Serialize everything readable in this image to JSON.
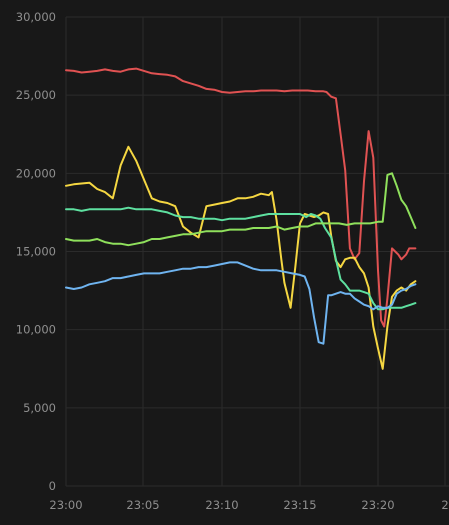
{
  "chart_data": {
    "type": "line",
    "title": "",
    "xlabel": "",
    "ylabel": "",
    "grid": true,
    "legend": "none",
    "xlim": [
      "23:00",
      "23:22.5"
    ],
    "ylim": [
      0,
      30000
    ],
    "x_ticks": [
      "23:00",
      "23:05",
      "23:10",
      "23:15",
      "23:20",
      "2"
    ],
    "y_ticks": [
      "0",
      "5,000",
      "10,000",
      "15,000",
      "20,000",
      "25,000",
      "30,000"
    ],
    "series": [
      {
        "color": "#e05252",
        "x": [
          "23:00",
          "23:00.5",
          "23:01",
          "23:01.5",
          "23:02",
          "23:02.5",
          "23:03",
          "23:03.5",
          "23:04",
          "23:04.5",
          "23:05",
          "23:05.5",
          "23:06",
          "23:06.5",
          "23:07",
          "23:07.5",
          "23:08",
          "23:08.5",
          "23:09",
          "23:09.5",
          "23:10",
          "23:10.5",
          "23:11",
          "23:11.5",
          "23:12",
          "23:12.5",
          "23:13",
          "23:13.5",
          "23:14",
          "23:14.5",
          "23:15",
          "23:15.5",
          "23:16",
          "23:16.5",
          "23:16.7",
          "23:17",
          "23:17.3",
          "23:17.6",
          "23:17.9",
          "23:18.2",
          "23:18.5",
          "23:18.8",
          "23:19.1",
          "23:19.4",
          "23:19.7",
          "23:20",
          "23:20.2",
          "23:20.4",
          "23:20.6",
          "23:20.9",
          "23:21.1",
          "23:21.3",
          "23:21.5",
          "23:21.8",
          "23:22",
          "23:22.2",
          "23:22.4"
        ],
        "values": [
          26600,
          26550,
          26450,
          26500,
          26550,
          26650,
          26550,
          26500,
          26650,
          26700,
          26550,
          26400,
          26350,
          26300,
          26200,
          25900,
          25750,
          25600,
          25400,
          25350,
          25200,
          25150,
          25200,
          25250,
          25250,
          25300,
          25300,
          25300,
          25250,
          25300,
          25300,
          25300,
          25250,
          25250,
          25200,
          24900,
          24800,
          22500,
          20200,
          15200,
          14500,
          14900,
          19500,
          22700,
          21000,
          13800,
          10600,
          10200,
          12000,
          15200,
          15000,
          14800,
          14500,
          14800,
          15200,
          15200,
          15200
        ]
      },
      {
        "color": "#f5d742",
        "x": [
          "23:00",
          "23:00.5",
          "23:01",
          "23:01.5",
          "23:02",
          "23:02.5",
          "23:03",
          "23:03.5",
          "23:04",
          "23:04.5",
          "23:05",
          "23:05.5",
          "23:06",
          "23:06.5",
          "23:07",
          "23:07.5",
          "23:08",
          "23:08.5",
          "23:09",
          "23:09.5",
          "23:10",
          "23:10.5",
          "23:11",
          "23:11.5",
          "23:12",
          "23:12.5",
          "23:13",
          "23:13.2",
          "23:13.5",
          "23:13.8",
          "23:14",
          "23:14.4",
          "23:14.7",
          "23:15",
          "23:15.3",
          "23:15.6",
          "23:15.9",
          "23:16.2",
          "23:16.5",
          "23:16.8",
          "23:17",
          "23:17.3",
          "23:17.6",
          "23:17.9",
          "23:18.2",
          "23:18.5",
          "23:18.8",
          "23:19.1",
          "23:19.4",
          "23:19.7",
          "23:20",
          "23:20.3",
          "23:20.6",
          "23:20.9",
          "23:21.2",
          "23:21.5",
          "23:21.8",
          "23:22.1",
          "23:22.4"
        ],
        "values": [
          19200,
          19300,
          19350,
          19400,
          19000,
          18800,
          18400,
          20500,
          21700,
          20800,
          19600,
          18400,
          18200,
          18100,
          17900,
          16600,
          16200,
          15900,
          17900,
          18000,
          18100,
          18200,
          18400,
          18400,
          18500,
          18700,
          18600,
          18800,
          17000,
          14500,
          13000,
          11400,
          14000,
          16800,
          17400,
          17300,
          17200,
          17300,
          17500,
          17400,
          16000,
          14400,
          14000,
          14500,
          14600,
          14600,
          14000,
          13600,
          12700,
          10200,
          8800,
          7500,
          10200,
          12100,
          12500,
          12700,
          12500,
          12900,
          13100
        ]
      },
      {
        "color": "#5ee0a0",
        "x": [
          "23:00",
          "23:00.5",
          "23:01",
          "23:01.5",
          "23:02",
          "23:02.5",
          "23:03",
          "23:03.5",
          "23:04",
          "23:04.5",
          "23:05",
          "23:05.5",
          "23:06",
          "23:06.5",
          "23:07",
          "23:07.5",
          "23:08",
          "23:08.5",
          "23:09",
          "23:09.5",
          "23:10",
          "23:10.5",
          "23:11",
          "23:11.5",
          "23:12",
          "23:12.5",
          "23:13",
          "23:13.5",
          "23:14",
          "23:14.5",
          "23:15",
          "23:15.2",
          "23:15.4",
          "23:15.7",
          "23:16",
          "23:16.3",
          "23:16.6",
          "23:17",
          "23:17.3",
          "23:17.6",
          "23:17.9",
          "23:18.2",
          "23:18.5",
          "23:18.8",
          "23:19.1",
          "23:19.4",
          "23:19.7",
          "23:20",
          "23:20.3",
          "23:20.6",
          "23:20.9",
          "23:21.2",
          "23:21.5",
          "23:21.8",
          "23:22.1",
          "23:22.4"
        ],
        "values": [
          17700,
          17700,
          17600,
          17700,
          17700,
          17700,
          17700,
          17700,
          17800,
          17700,
          17700,
          17700,
          17600,
          17500,
          17300,
          17200,
          17200,
          17100,
          17100,
          17100,
          17000,
          17100,
          17100,
          17100,
          17200,
          17300,
          17400,
          17400,
          17400,
          17400,
          17400,
          17300,
          17200,
          17400,
          17300,
          17100,
          16500,
          15900,
          14500,
          13200,
          12900,
          12500,
          12500,
          12500,
          12400,
          12300,
          11700,
          11300,
          11300,
          11400,
          11400,
          11400,
          11400,
          11500,
          11600,
          11700
        ]
      },
      {
        "color": "#8fe05c",
        "x": [
          "23:00",
          "23:00.5",
          "23:01",
          "23:01.5",
          "23:02",
          "23:02.5",
          "23:03",
          "23:03.5",
          "23:04",
          "23:04.5",
          "23:05",
          "23:05.5",
          "23:06",
          "23:06.5",
          "23:07",
          "23:07.5",
          "23:08",
          "23:08.5",
          "23:09",
          "23:09.5",
          "23:10",
          "23:10.5",
          "23:11",
          "23:11.5",
          "23:12",
          "23:12.5",
          "23:13",
          "23:13.5",
          "23:14",
          "23:14.5",
          "23:15",
          "23:15.5",
          "23:16",
          "23:16.5",
          "23:17",
          "23:17.5",
          "23:18",
          "23:18.5",
          "23:19",
          "23:19.5",
          "23:20",
          "23:20.3",
          "23:20.6",
          "23:20.9",
          "23:21.2",
          "23:21.5",
          "23:21.8",
          "23:22.1",
          "23:22.4"
        ],
        "values": [
          15800,
          15700,
          15700,
          15700,
          15800,
          15600,
          15500,
          15500,
          15400,
          15500,
          15600,
          15800,
          15800,
          15900,
          16000,
          16100,
          16100,
          16200,
          16300,
          16300,
          16300,
          16400,
          16400,
          16400,
          16500,
          16500,
          16500,
          16600,
          16400,
          16500,
          16600,
          16600,
          16800,
          16800,
          16800,
          16800,
          16700,
          16800,
          16800,
          16800,
          16900,
          16900,
          19900,
          20000,
          19200,
          18300,
          17900,
          17200,
          16500
        ]
      },
      {
        "color": "#6fb4f0",
        "x": [
          "23:00",
          "23:00.5",
          "23:01",
          "23:01.5",
          "23:02",
          "23:02.5",
          "23:03",
          "23:03.5",
          "23:04",
          "23:04.5",
          "23:05",
          "23:05.5",
          "23:06",
          "23:06.5",
          "23:07",
          "23:07.5",
          "23:08",
          "23:08.5",
          "23:09",
          "23:09.5",
          "23:10",
          "23:10.5",
          "23:11",
          "23:11.5",
          "23:12",
          "23:12.5",
          "23:13",
          "23:13.5",
          "23:14",
          "23:14.5",
          "23:15",
          "23:15.3",
          "23:15.6",
          "23:15.9",
          "23:16.2",
          "23:16.5",
          "23:16.8",
          "23:17",
          "23:17.3",
          "23:17.6",
          "23:17.9",
          "23:18.2",
          "23:18.5",
          "23:18.8",
          "23:19.1",
          "23:19.4",
          "23:19.7",
          "23:20",
          "23:20.3",
          "23:20.6",
          "23:20.9",
          "23:21.2",
          "23:21.5",
          "23:21.8",
          "23:22.1",
          "23:22.4"
        ],
        "values": [
          12700,
          12600,
          12700,
          12900,
          13000,
          13100,
          13300,
          13300,
          13400,
          13500,
          13600,
          13600,
          13600,
          13700,
          13800,
          13900,
          13900,
          14000,
          14000,
          14100,
          14200,
          14300,
          14300,
          14100,
          13900,
          13800,
          13800,
          13800,
          13700,
          13600,
          13500,
          13400,
          12600,
          10800,
          9200,
          9100,
          12200,
          12200,
          12300,
          12400,
          12300,
          12300,
          12000,
          11800,
          11600,
          11500,
          11300,
          11500,
          11400,
          11400,
          11600,
          12300,
          12500,
          12600,
          12800,
          12900
        ]
      }
    ]
  }
}
